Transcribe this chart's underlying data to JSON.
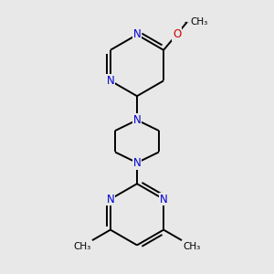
{
  "background_color": "#e8e8e8",
  "bond_color": "#000000",
  "N_color": "#0000cc",
  "O_color": "#cc0000",
  "line_width": 1.4,
  "dbo": 0.012,
  "figsize": [
    3.0,
    3.0
  ],
  "dpi": 100,
  "font_size": 8.5,
  "xlim": [
    0.15,
    0.85
  ],
  "ylim": [
    0.05,
    0.97
  ]
}
